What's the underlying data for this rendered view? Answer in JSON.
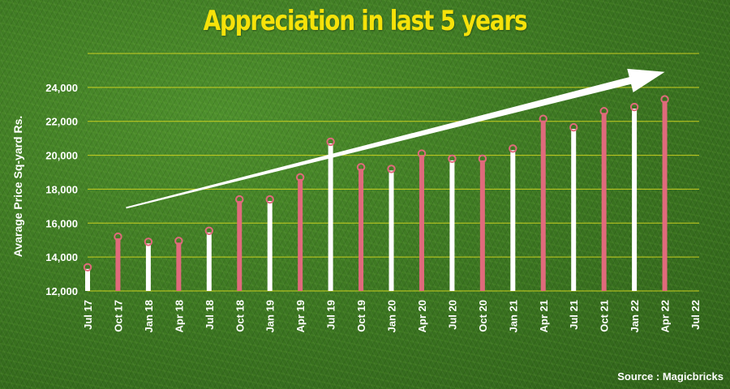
{
  "chart_data": {
    "type": "bar",
    "title": "Appreciation in last 5 years",
    "ylabel": "Avarage Price Sq-yard Rs.",
    "xlabel": "",
    "source": "Source : Magicbricks",
    "ylim": [
      12000,
      26000
    ],
    "yticks": [
      12000,
      14000,
      16000,
      18000,
      20000,
      22000,
      24000
    ],
    "ytick_labels": [
      "12,000",
      "14,000",
      "16,000",
      "18,000",
      "20,000",
      "22,000",
      "24,000"
    ],
    "grid": true,
    "categories": [
      "Jul 17",
      "Oct 17",
      "Jan 18",
      "Apr 18",
      "Jul 18",
      "Oct 18",
      "Jan 19",
      "Apr 19",
      "Jul 19",
      "Oct 19",
      "Jan 20",
      "Apr 20",
      "Jul 20",
      "Oct 20",
      "Jan 21",
      "Apr 21",
      "Jul 21",
      "Oct 21",
      "Jan 22",
      "Apr 22",
      "Jul 22"
    ],
    "values": [
      13300,
      15100,
      14800,
      14850,
      15450,
      17300,
      17300,
      18600,
      20700,
      19200,
      19100,
      20000,
      19700,
      19700,
      20300,
      22050,
      21550,
      22500,
      22750,
      23200,
      null
    ],
    "bar_colors": [
      "#ffffff",
      "#e06a7c",
      "#ffffff",
      "#e06a7c",
      "#ffffff",
      "#e06a7c",
      "#ffffff",
      "#e06a7c",
      "#ffffff",
      "#e06a7c",
      "#ffffff",
      "#e06a7c",
      "#ffffff",
      "#e06a7c",
      "#ffffff",
      "#e06a7c",
      "#ffffff",
      "#e06a7c",
      "#ffffff",
      "#e06a7c"
    ],
    "marker_color": "#e06a7c",
    "grid_color": "#d8d820",
    "title_color": "#f6e20a",
    "trend_arrow": {
      "from": [
        "Oct 17",
        16900
      ],
      "to": [
        "Apr 22",
        25300
      ],
      "color": "#ffffff"
    }
  }
}
